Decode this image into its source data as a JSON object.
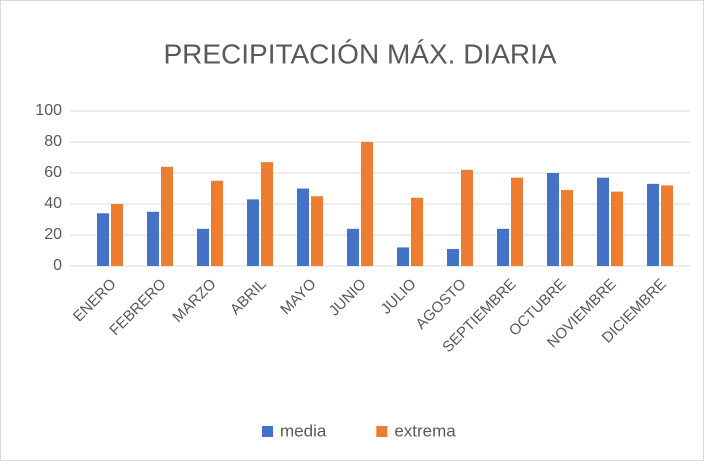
{
  "chart_data": {
    "type": "bar",
    "title": "PRECIPITACIÓN MÁX. DIARIA",
    "categories": [
      "ENERO",
      "FEBRERO",
      "MARZO",
      "ABRIL",
      "MAYO",
      "JUNIO",
      "JULIO",
      "AGOSTO",
      "SEPTIEMBRE",
      "OCTUBRE",
      "NOVIEMBRE",
      "DICIEMBRE"
    ],
    "series": [
      {
        "name": "media",
        "color": "#4472c4",
        "values": [
          34,
          35,
          24,
          43,
          50,
          24,
          12,
          11,
          24,
          60,
          57,
          53
        ]
      },
      {
        "name": "extrema",
        "color": "#ed7d31",
        "values": [
          40,
          64,
          55,
          67,
          45,
          80,
          44,
          62,
          57,
          49,
          48,
          52
        ]
      }
    ],
    "ylim": [
      0,
      100
    ],
    "yticks": [
      0,
      20,
      40,
      60,
      80,
      100
    ],
    "grid": true,
    "legend": "bottom"
  }
}
